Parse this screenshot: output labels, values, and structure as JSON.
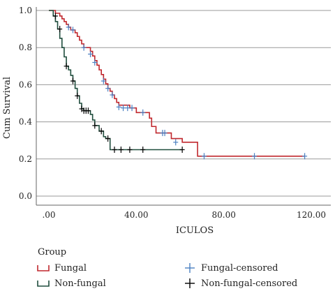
{
  "chart_data": {
    "type": "line",
    "subtype": "kaplan-meier-step",
    "xlabel": "ICULOS",
    "ylabel": "Cum Survival",
    "xlim": [
      0,
      120
    ],
    "ylim": [
      0,
      1.0
    ],
    "x_ticks": [
      0,
      40,
      80,
      120
    ],
    "x_tick_labels": [
      ".00",
      "40.00",
      "80.00",
      "120.00"
    ],
    "y_ticks": [
      0.0,
      0.2,
      0.4,
      0.6,
      0.8,
      1.0
    ],
    "y_tick_labels": [
      "0.0",
      "0.2",
      "0.4",
      "0.6",
      "0.8",
      "1.0"
    ],
    "grid": "horizontal",
    "legend_title": "Group",
    "legend_placement": "bottom",
    "series": [
      {
        "name": "Fungal",
        "color": "#c0272d",
        "censor_color": "#4a7fc1",
        "censor_name": "Fungal-censored",
        "steps": [
          [
            0,
            1.0
          ],
          [
            3,
            0.985
          ],
          [
            5,
            0.97
          ],
          [
            6,
            0.955
          ],
          [
            7,
            0.94
          ],
          [
            8,
            0.925
          ],
          [
            9,
            0.91
          ],
          [
            10,
            0.895
          ],
          [
            12,
            0.88
          ],
          [
            13,
            0.86
          ],
          [
            14,
            0.84
          ],
          [
            15,
            0.82
          ],
          [
            16,
            0.8
          ],
          [
            19,
            0.78
          ],
          [
            20,
            0.755
          ],
          [
            21,
            0.73
          ],
          [
            22,
            0.705
          ],
          [
            23,
            0.68
          ],
          [
            24,
            0.655
          ],
          [
            25,
            0.63
          ],
          [
            26,
            0.605
          ],
          [
            27,
            0.58
          ],
          [
            28,
            0.565
          ],
          [
            29,
            0.545
          ],
          [
            30,
            0.525
          ],
          [
            31,
            0.505
          ],
          [
            32,
            0.49
          ],
          [
            37,
            0.475
          ],
          [
            40,
            0.45
          ],
          [
            46,
            0.42
          ],
          [
            47,
            0.375
          ],
          [
            49,
            0.34
          ],
          [
            56,
            0.31
          ],
          [
            61,
            0.29
          ],
          [
            68,
            0.215
          ]
        ],
        "x_end": 117,
        "censored": [
          [
            9,
            0.91
          ],
          [
            11,
            0.895
          ],
          [
            16,
            0.8
          ],
          [
            19,
            0.765
          ],
          [
            21,
            0.72
          ],
          [
            25,
            0.62
          ],
          [
            27,
            0.58
          ],
          [
            29,
            0.545
          ],
          [
            32,
            0.48
          ],
          [
            34,
            0.475
          ],
          [
            36,
            0.475
          ],
          [
            38,
            0.475
          ],
          [
            43,
            0.45
          ],
          [
            52,
            0.34
          ],
          [
            53,
            0.34
          ],
          [
            58,
            0.29
          ],
          [
            71,
            0.215
          ],
          [
            94,
            0.215
          ],
          [
            117,
            0.215
          ]
        ]
      },
      {
        "name": "Non-fungal",
        "color": "#1f4d3d",
        "censor_color": "#000000",
        "censor_name": "Non-fungal-censored",
        "steps": [
          [
            0,
            1.0
          ],
          [
            2,
            0.97
          ],
          [
            3,
            0.94
          ],
          [
            4,
            0.9
          ],
          [
            5,
            0.85
          ],
          [
            6,
            0.8
          ],
          [
            7,
            0.75
          ],
          [
            8,
            0.7
          ],
          [
            9,
            0.68
          ],
          [
            10,
            0.65
          ],
          [
            11,
            0.62
          ],
          [
            12,
            0.58
          ],
          [
            13,
            0.54
          ],
          [
            14,
            0.5
          ],
          [
            15,
            0.47
          ],
          [
            16,
            0.46
          ],
          [
            19,
            0.44
          ],
          [
            20,
            0.41
          ],
          [
            21,
            0.38
          ],
          [
            23,
            0.35
          ],
          [
            25,
            0.32
          ],
          [
            26,
            0.31
          ],
          [
            28,
            0.25
          ]
        ],
        "x_end": 61,
        "censored": [
          [
            3,
            0.97
          ],
          [
            5,
            0.9
          ],
          [
            8,
            0.7
          ],
          [
            11,
            0.62
          ],
          [
            13,
            0.54
          ],
          [
            15,
            0.47
          ],
          [
            16,
            0.46
          ],
          [
            17,
            0.46
          ],
          [
            18,
            0.46
          ],
          [
            21,
            0.38
          ],
          [
            24,
            0.35
          ],
          [
            27,
            0.31
          ],
          [
            30,
            0.25
          ],
          [
            33,
            0.25
          ],
          [
            37,
            0.25
          ],
          [
            43,
            0.25
          ],
          [
            61,
            0.25
          ]
        ]
      }
    ]
  },
  "legend": {
    "title": "Group",
    "items": [
      {
        "label": "Fungal",
        "kind": "line",
        "color": "#c0272d"
      },
      {
        "label": "Fungal-censored",
        "kind": "censor",
        "color": "#4a7fc1"
      },
      {
        "label": "Non-fungal",
        "kind": "line",
        "color": "#1f4d3d"
      },
      {
        "label": "Non-fungal-censored",
        "kind": "censor",
        "color": "#000000"
      }
    ]
  }
}
